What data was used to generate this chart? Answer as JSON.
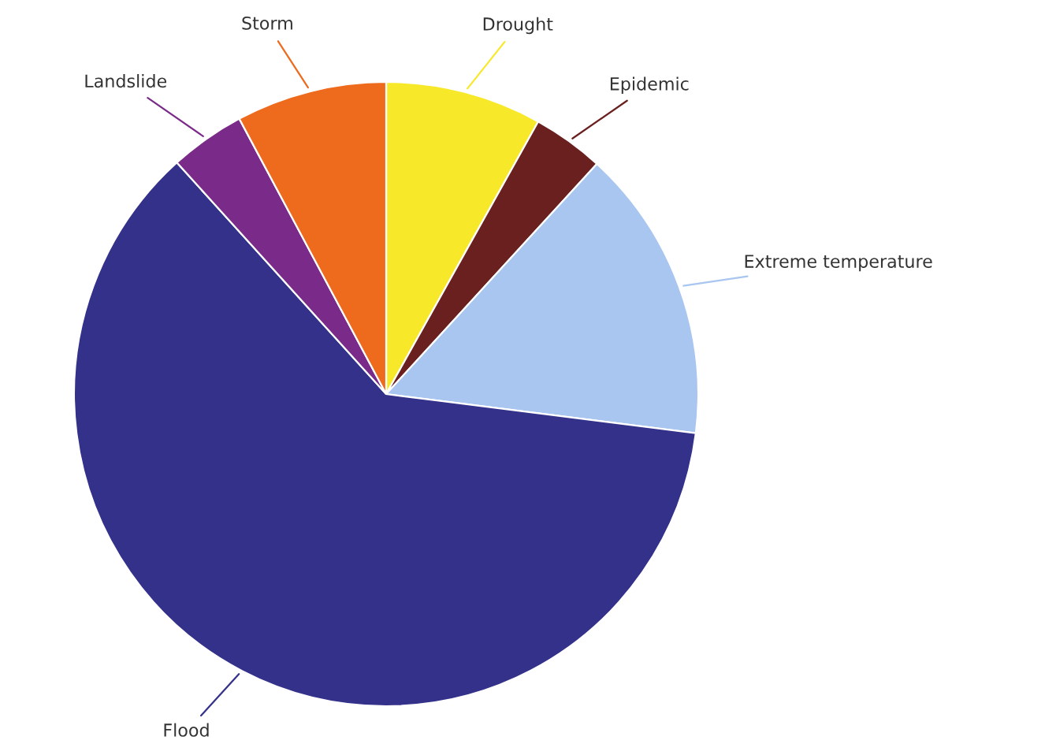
{
  "chart_data": {
    "type": "pie",
    "categories": [
      "Drought",
      "Epidemic",
      "Extreme temperature",
      "Flood",
      "Landslide",
      "Storm"
    ],
    "values": [
      8.1,
      3.7,
      15.2,
      61.3,
      3.9,
      7.8
    ],
    "colors": [
      "#f7e92a",
      "#6b2020",
      "#a9c6f0",
      "#33318a",
      "#7a2a88",
      "#ee6a1c"
    ],
    "legend": false
  }
}
